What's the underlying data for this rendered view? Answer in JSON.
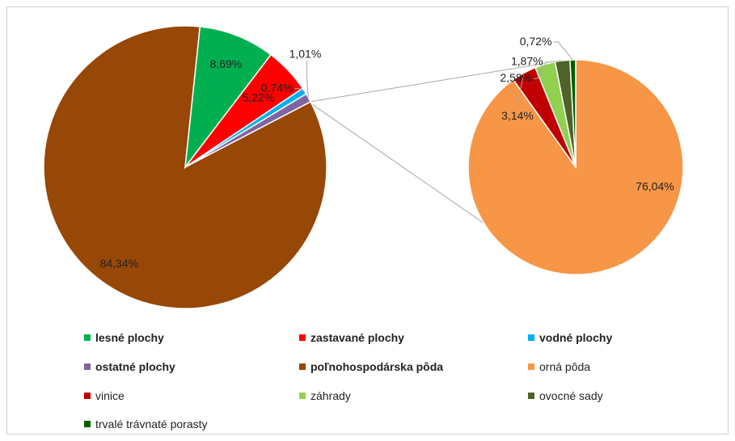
{
  "chart_data": [
    {
      "type": "pie",
      "categories": [
        "poľnohospodárska pôda",
        "lesné plochy",
        "zastavané plochy",
        "vodné plochy",
        "ostatné plochy"
      ],
      "values": [
        84.34,
        8.69,
        5.22,
        0.74,
        1.01
      ],
      "labels": [
        "84,34%",
        "8,69%",
        "5,22%",
        "0,74%",
        "1,01%"
      ],
      "colors": [
        "#974706",
        "#00b050",
        "#ff0000",
        "#00b0f0",
        "#8064a2"
      ]
    },
    {
      "type": "pie",
      "categories": [
        "orná pôda",
        "vinice",
        "záhrady",
        "ovocné sady",
        "trvalé trávnaté porasty"
      ],
      "values": [
        76.04,
        3.14,
        2.58,
        1.87,
        0.72
      ],
      "labels": [
        "76,04%",
        "3,14%",
        "2,58%",
        "1,87%",
        "0,72%"
      ],
      "colors": [
        "#f79646",
        "#c00000",
        "#92d050",
        "#4f6228",
        "#006100"
      ]
    }
  ],
  "legend": [
    {
      "label": "lesné plochy",
      "color": "#00b050",
      "bold": true
    },
    {
      "label": "zastavané plochy",
      "color": "#ff0000",
      "bold": true
    },
    {
      "label": "vodné plochy",
      "color": "#00b0f0",
      "bold": true
    },
    {
      "label": "ostatné plochy",
      "color": "#8064a2",
      "bold": true
    },
    {
      "label": "poľnohospodárska pôda",
      "color": "#974706",
      "bold": true
    },
    {
      "label": "orná pôda",
      "color": "#f79646",
      "bold": false
    },
    {
      "label": "vinice",
      "color": "#c00000",
      "bold": false
    },
    {
      "label": "záhrady",
      "color": "#92d050",
      "bold": false
    },
    {
      "label": "ovocné sady",
      "color": "#4f6228",
      "bold": false
    },
    {
      "label": "trvalé trávnaté porasty",
      "color": "#006100",
      "bold": false
    }
  ]
}
